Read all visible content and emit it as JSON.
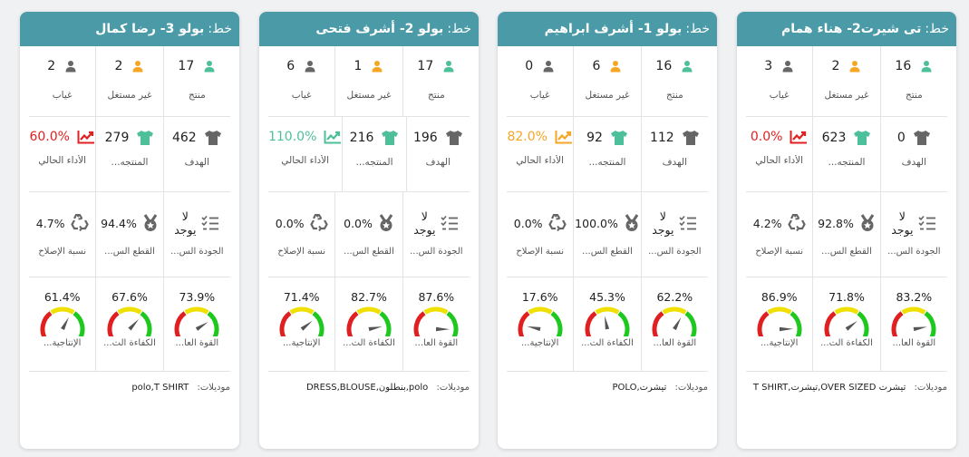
{
  "labels": {
    "produced": "منتج",
    "not_used": "غير مستغل",
    "absent": "غياب",
    "target": "الهدف",
    "products": "المنتجه...",
    "current_perf": "الأداء الحالي",
    "quality": "الجودة الس...",
    "cut": "القطع الس...",
    "repair_rate": "نسبة الإصلاح",
    "strength": "القوة العا...",
    "efficiency": "الكفاءة الت...",
    "productivity": "الإنتاجية...",
    "models": "موديلات:",
    "line_prefix": "خط:",
    "na_line1": "لا",
    "na_line2": "يوجد"
  },
  "colors": {
    "header": "#4a9aa7",
    "green": "#4dbf9a",
    "orange": "#f5a623",
    "gray": "#666666",
    "red": "#e02020"
  },
  "cards": [
    {
      "title": "تى شيرت2- هناء همام",
      "produced": "16",
      "not_used": "2",
      "absent": "3",
      "target": "0",
      "products": "623",
      "perf": "0.0%",
      "perf_color": "#e02020",
      "quality": "na",
      "cut": "92.8%",
      "repair": "4.2%",
      "strength": "83.2%",
      "strength_v": 0.832,
      "efficiency": "71.8%",
      "efficiency_v": 0.718,
      "productivity": "86.9%",
      "productivity_v": 0.869,
      "models": "تيشرت OVER SIZED,تيشرت,T SHIRT"
    },
    {
      "title": "بولو 1- أشرف ابراهيم",
      "produced": "16",
      "not_used": "6",
      "absent": "0",
      "target": "112",
      "products": "92",
      "perf": "82.0%",
      "perf_color": "#f5a623",
      "quality": "na",
      "cut": "100.0%",
      "repair": "0.0%",
      "strength": "62.2%",
      "strength_v": 0.622,
      "efficiency": "45.3%",
      "efficiency_v": 0.453,
      "productivity": "17.6%",
      "productivity_v": 0.176,
      "models": "تيشرت,POLO"
    },
    {
      "title": "بولو 2- أشرف فتحى",
      "produced": "17",
      "not_used": "1",
      "absent": "6",
      "target": "196",
      "products": "216",
      "perf": "110.0%",
      "perf_color": "#4dbf9a",
      "quality": "na",
      "cut": "0.0%",
      "repair": "0.0%",
      "strength": "87.6%",
      "strength_v": 0.876,
      "efficiency": "82.7%",
      "efficiency_v": 0.827,
      "productivity": "71.4%",
      "productivity_v": 0.714,
      "models": "polo,بنطلون,DRESS,BLOUSE"
    },
    {
      "title": "بولو 3- رضا كمال",
      "produced": "17",
      "not_used": "2",
      "absent": "2",
      "target": "462",
      "products": "279",
      "perf": "60.0%",
      "perf_color": "#e02020",
      "quality": "na",
      "cut": "94.4%",
      "repair": "4.7%",
      "strength": "73.9%",
      "strength_v": 0.739,
      "efficiency": "67.6%",
      "efficiency_v": 0.676,
      "productivity": "61.4%",
      "productivity_v": 0.614,
      "models": "polo,T SHIRT"
    }
  ]
}
